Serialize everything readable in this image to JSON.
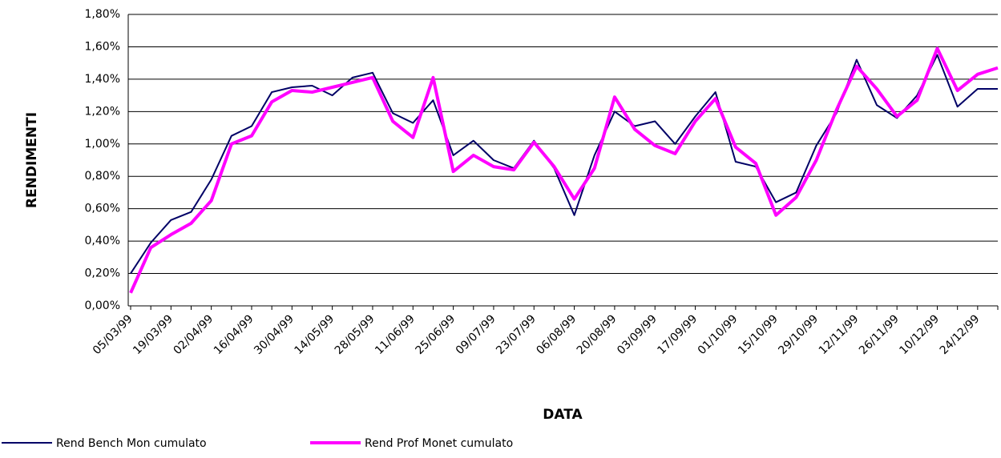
{
  "chart_data": {
    "type": "line",
    "x_label": "DATA",
    "y_label": "RENDIMENTI",
    "categories": [
      "05/03/99",
      null,
      "19/03/99",
      null,
      "02/04/99",
      null,
      "16/04/99",
      null,
      "30/04/99",
      null,
      "14/05/99",
      null,
      "28/05/99",
      null,
      "11/06/99",
      null,
      "25/06/99",
      null,
      "09/07/99",
      null,
      "23/07/99",
      null,
      "06/08/99",
      null,
      "20/08/99",
      null,
      "03/09/99",
      null,
      "17/09/99",
      null,
      "01/10/99",
      null,
      "15/10/99",
      null,
      "29/10/99",
      null,
      "12/11/99",
      null,
      "26/11/99",
      null,
      "10/12/99",
      null,
      "24/12/99",
      null
    ],
    "series": [
      {
        "name": "Rend Bench Mon cumulato",
        "color": "#000066",
        "values": [
          0.2,
          0.39,
          0.53,
          0.58,
          0.78,
          1.05,
          1.11,
          1.32,
          1.35,
          1.36,
          1.3,
          1.41,
          1.44,
          1.19,
          1.13,
          1.27,
          0.93,
          1.02,
          0.9,
          0.85,
          1.02,
          0.85,
          0.56,
          0.93,
          1.2,
          1.11,
          1.14,
          1.0,
          1.17,
          1.32,
          0.89,
          0.86,
          0.64,
          0.7,
          0.99,
          1.19,
          1.52,
          1.24,
          1.16,
          1.3,
          1.55,
          1.23,
          1.34,
          1.34
        ]
      },
      {
        "name": "Rend Prof Monet cumulato",
        "color": "#ff00ff",
        "values": [
          0.08,
          0.36,
          0.44,
          0.51,
          0.65,
          1.0,
          1.05,
          1.26,
          1.33,
          1.32,
          1.35,
          1.38,
          1.41,
          1.14,
          1.04,
          1.41,
          0.83,
          0.93,
          0.86,
          0.84,
          1.01,
          0.86,
          0.66,
          0.85,
          1.29,
          1.09,
          0.99,
          0.94,
          1.14,
          1.28,
          0.98,
          0.88,
          0.56,
          0.67,
          0.9,
          1.21,
          1.48,
          1.34,
          1.17,
          1.27,
          1.59,
          1.33,
          1.43,
          1.47
        ]
      }
    ],
    "ylim": [
      0,
      1.8
    ],
    "yticks": [
      {
        "value": 0,
        "label": "0,00%"
      },
      {
        "value": 0.2,
        "label": "0,20%"
      },
      {
        "value": 0.4,
        "label": "0,40%"
      },
      {
        "value": 0.6,
        "label": "0,60%"
      },
      {
        "value": 0.8,
        "label": "0,80%"
      },
      {
        "value": 1.0,
        "label": "1,00%"
      },
      {
        "value": 1.2,
        "label": "1,20%"
      },
      {
        "value": 1.4,
        "label": "1,40%"
      },
      {
        "value": 1.6,
        "label": "1,60%"
      },
      {
        "value": 1.8,
        "label": "1,80%"
      }
    ],
    "grid": true,
    "legend": "bottom"
  }
}
